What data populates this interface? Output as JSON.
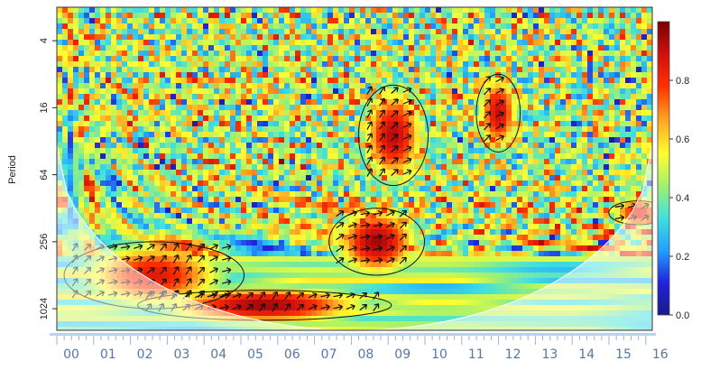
{
  "chart_data": {
    "type": "heatmap",
    "title": "",
    "xlabel": "",
    "ylabel": "Period",
    "x_ticks": [
      "00",
      "01",
      "02",
      "03",
      "04",
      "05",
      "06",
      "07",
      "08",
      "09",
      "10",
      "11",
      "12",
      "13",
      "14",
      "15",
      "16"
    ],
    "y_ticks": [
      4,
      16,
      64,
      256,
      1024
    ],
    "y_scale": "log2",
    "y_range": [
      2,
      1600
    ],
    "colorbar": {
      "ticks": [
        0.0,
        0.2,
        0.4,
        0.6,
        0.8
      ],
      "range": [
        0,
        1
      ],
      "colormap": [
        "#1a1a8a",
        "#2222dd",
        "#22a0ff",
        "#40e0e0",
        "#a0f070",
        "#ffff30",
        "#ffa020",
        "#ff3000",
        "#d01010",
        "#7a0000"
      ]
    },
    "cone_of_influence": true,
    "significance_contours": true,
    "phase_arrows": true,
    "regions": [
      {
        "x": [
          7.2,
          9.4
        ],
        "period": [
          128,
          512
        ],
        "power": 0.95
      },
      {
        "x": [
          0,
          4.5
        ],
        "period": [
          256,
          1024
        ],
        "power": 0.85
      },
      {
        "x": [
          2.0,
          8.5
        ],
        "period": [
          700,
          1300
        ],
        "power": 0.95
      },
      {
        "x": [
          8.0,
          9.5
        ],
        "period": [
          10,
          80
        ],
        "power": 0.92
      },
      {
        "x": [
          11.2,
          12.0
        ],
        "period": [
          8,
          40
        ],
        "power": 0.9
      },
      {
        "x": [
          14.8,
          16
        ],
        "period": [
          110,
          180
        ],
        "power": 0.85
      }
    ]
  }
}
